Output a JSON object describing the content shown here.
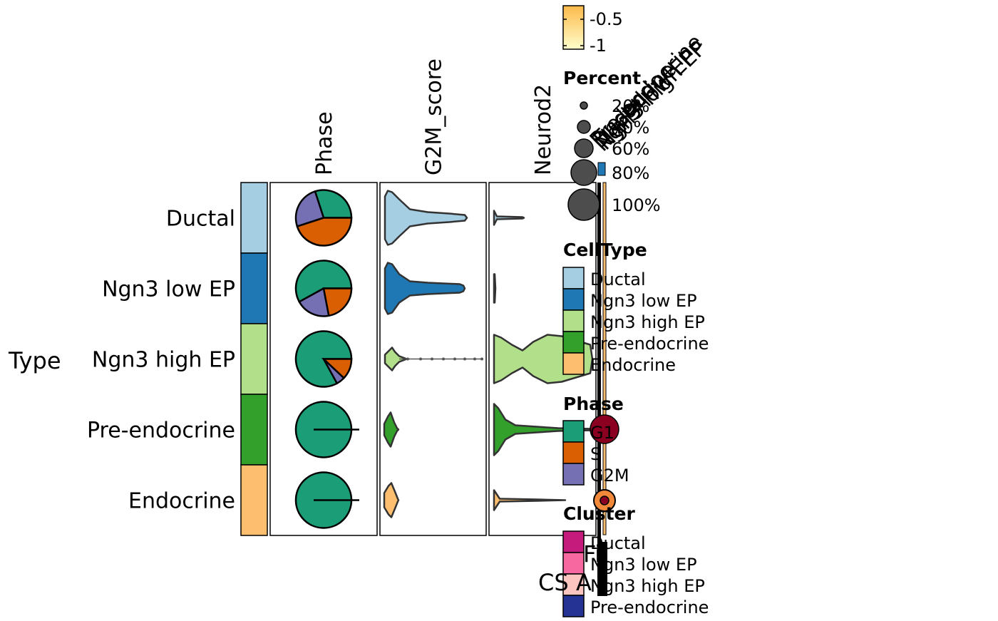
{
  "chart_data": {
    "type": "heatmap",
    "row_group_label": "Type",
    "rows": [
      "Ductal",
      "Ngn3 low EP",
      "Ngn3 high EP",
      "Pre-endocrine",
      "Endocrine"
    ],
    "row_colors": [
      "#a6cee3",
      "#1f78b4",
      "#b2df8a",
      "#33a02c",
      "#fdbf6f"
    ],
    "columns": [
      "Phase",
      "G2M_score",
      "Neurod2"
    ],
    "phase_pies": [
      {
        "row": "Ductal",
        "G1": 0.3,
        "S": 0.45,
        "G2M": 0.25
      },
      {
        "row": "Ngn3 low EP",
        "G1": 0.58,
        "S": 0.22,
        "G2M": 0.2
      },
      {
        "row": "Ngn3 high EP",
        "G1": 0.83,
        "S": 0.12,
        "G2M": 0.05
      },
      {
        "row": "Pre-endocrine",
        "G1": 1.0,
        "S": 0.0,
        "G2M": 0.0
      },
      {
        "row": "Endocrine",
        "G1": 1.0,
        "S": 0.0,
        "G2M": 0.0
      }
    ],
    "phase_colors": {
      "G1": "#1b9e77",
      "S": "#d95f02",
      "G2M": "#7570b3"
    },
    "violin_columns": [
      "G2M_score",
      "Neurod2"
    ],
    "side_labels": [
      "Ductal",
      "Ngn3 low EP",
      "Ngn3 high EP",
      "Pre-endocrine",
      "Endocrine"
    ],
    "legends": {
      "colorbar": {
        "ticks": [
          "-0.5",
          "-1"
        ]
      },
      "percent": {
        "title": "Percent",
        "items": [
          "20%",
          "40%",
          "60%",
          "80%",
          "100%"
        ]
      },
      "celltype": {
        "title": "CellType",
        "items": [
          "Ductal",
          "Ngn3 low EP",
          "Ngn3 high EP",
          "Pre-endocrine",
          "Endocrine"
        ],
        "colors": [
          "#a6cee3",
          "#1f78b4",
          "#b2df8a",
          "#33a02c",
          "#fdbf6f"
        ]
      },
      "phase": {
        "title": "Phase",
        "items": [
          "G1",
          "S",
          "G2M"
        ],
        "colors": [
          "#1b9e77",
          "#d95f02",
          "#7570b3"
        ]
      },
      "cluster": {
        "title": "Cluster",
        "items": [
          "Ductal",
          "Ngn3 low EP",
          "Ngn3 high EP",
          "Pre-endocrine"
        ],
        "colors": [
          "#c51b7d",
          "#f768a1",
          "#fcc5c0",
          "#253494"
        ]
      }
    },
    "bottom_text": [
      "Fi",
      "CS",
      "A"
    ]
  }
}
